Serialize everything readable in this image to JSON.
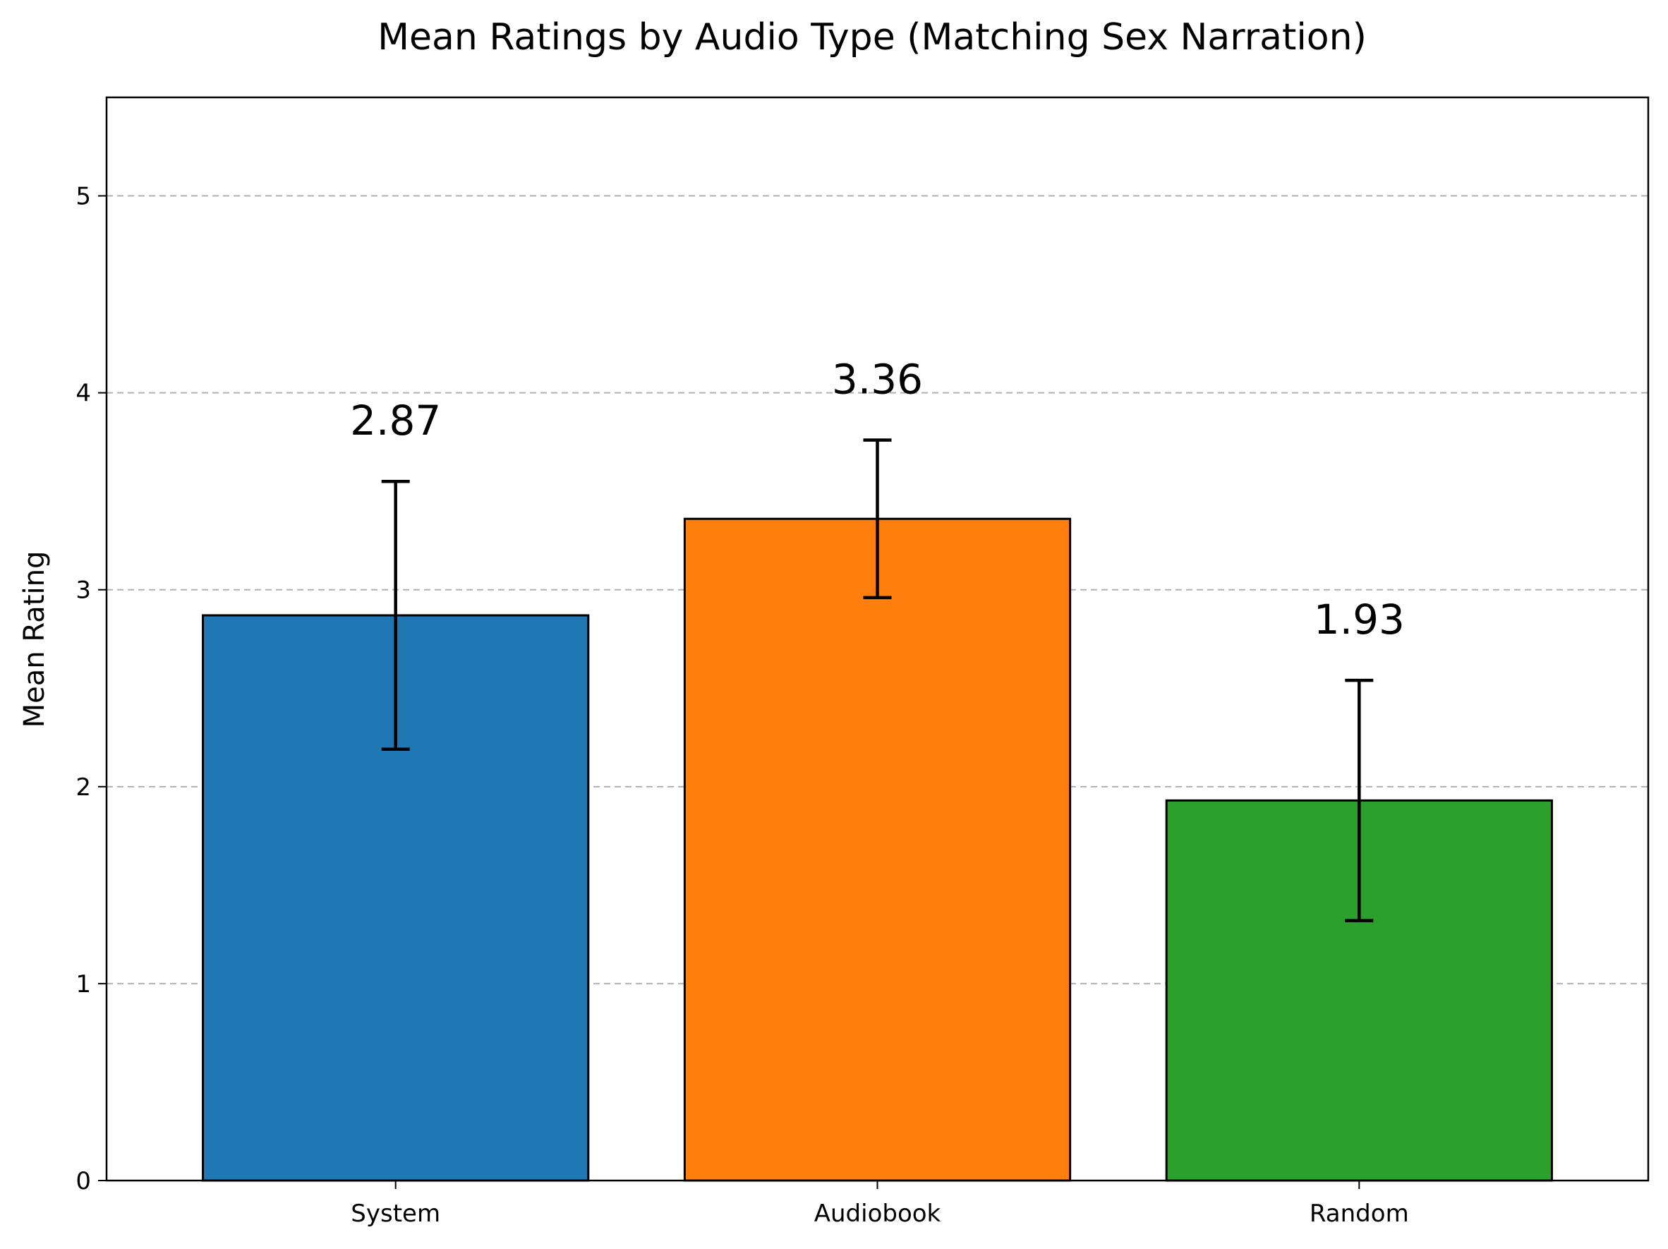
{
  "chart_data": {
    "type": "bar",
    "title": "Mean Ratings by Audio Type (Matching Sex Narration)",
    "xlabel": "",
    "ylabel": "Mean Rating",
    "categories": [
      "System",
      "Audiobook",
      "Random"
    ],
    "values": [
      2.87,
      3.36,
      1.93
    ],
    "value_labels": [
      "2.87",
      "3.36",
      "1.93"
    ],
    "error_low": [
      2.19,
      2.96,
      1.32
    ],
    "error_high": [
      3.55,
      3.76,
      2.54
    ],
    "colors": [
      "#1f77b4",
      "#ff7f0e",
      "#2ca02c"
    ],
    "ylim": [
      0,
      5.5
    ],
    "yticks": [
      0,
      1,
      2,
      3,
      4,
      5
    ],
    "ytick_labels": [
      "0",
      "1",
      "2",
      "3",
      "4",
      "5"
    ],
    "grid": "y-dashed",
    "legend": "none"
  }
}
